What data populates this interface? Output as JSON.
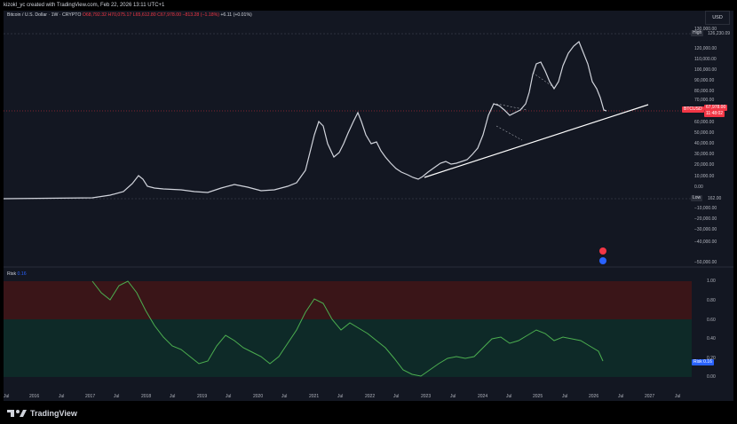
{
  "header": {
    "text": "kizokl_yc created with TradingView.com, Feb 22, 2026 13:11 UTC+1"
  },
  "legend": {
    "symbol": "Bitcoin / U.S. Dollar · 1W · CRYPTO",
    "open": "O68,792.32",
    "high": "H70,075.17",
    "low": "L65,612.80",
    "close": "C67,978.00",
    "change": "−813.28 (−1.18%)",
    "extra": "+6.11 (+0.01%)"
  },
  "currency": "USD",
  "price_axis": {
    "labels": [
      "130,000.00",
      "120,000.00",
      "110,000.00",
      "100,000.00",
      "90,000.00",
      "80,000.00",
      "70,000.00",
      "60,000.00",
      "50,000.00",
      "40,000.00",
      "30,000.00",
      "20,000.00",
      "10,000.00",
      "0.00",
      "−10,000.00",
      "−20,000.00",
      "−30,000.00",
      "−40,000.00",
      "−50,000.00"
    ],
    "high_label": "High",
    "high_value": "126,230.09",
    "low_label": "Low",
    "low_value": "162.00",
    "symbol_tag": "BTCUSD",
    "price_tag": "67,978.00",
    "countdown": "11:48:02"
  },
  "risk": {
    "label": "Risk",
    "value": "0.16",
    "axis_labels": [
      "1.00",
      "0.80",
      "0.60",
      "0.40",
      "0.20",
      "0.00"
    ],
    "tag_label": "Risk",
    "tag_value": "0.16"
  },
  "time_axis": [
    "Jul",
    "2016",
    "Jul",
    "2017",
    "Jul",
    "2018",
    "Jul",
    "2019",
    "Jul",
    "2020",
    "Jul",
    "2021",
    "Jul",
    "2022",
    "Jul",
    "2023",
    "Jul",
    "2024",
    "Jul",
    "2025",
    "Jul",
    "2026",
    "Jul",
    "2027",
    "Jul"
  ],
  "footer": {
    "brand": "TradingView"
  },
  "colors": {
    "up": "#22ab94",
    "down": "#f23645",
    "bg": "#131722",
    "accent": "#2962ff"
  }
}
